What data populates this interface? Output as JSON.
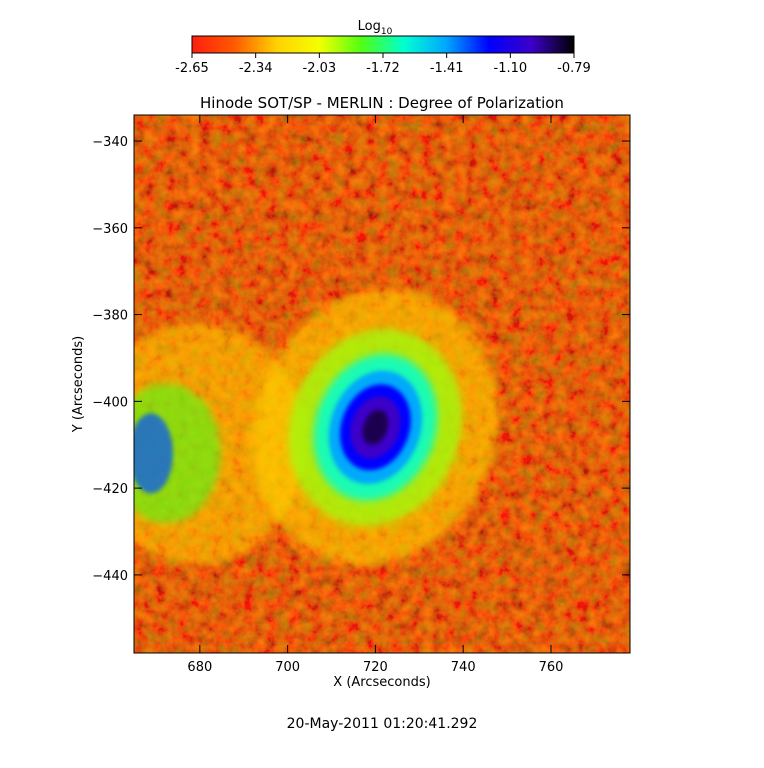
{
  "chart_data": {
    "type": "heatmap",
    "title": "Hinode SOT/SP - MERLIN : Degree of Polarization",
    "xlabel": "X (Arcseconds)",
    "ylabel": "Y (Arcseconds)",
    "xlim": [
      665,
      778
    ],
    "ylim": [
      -458,
      -334
    ],
    "x_ticks": [
      680,
      700,
      720,
      740,
      760
    ],
    "y_ticks": [
      -340,
      -360,
      -380,
      -400,
      -420,
      -440
    ],
    "colorbar": {
      "label_main": "Log",
      "label_sub": "10",
      "ticks": [
        "-2.65",
        "-2.34",
        "-2.03",
        "-1.72",
        "-1.41",
        "-1.10",
        "-0.79"
      ],
      "range": [
        -2.65,
        -0.79
      ],
      "colors": [
        "#ff1e0f",
        "#ff5a00",
        "#ffd200",
        "#f5ff00",
        "#50ff14",
        "#00ffd2",
        "#00a5ff",
        "#0000ff",
        "#3c00c8",
        "#000000"
      ]
    },
    "features": [
      {
        "name": "sunspot core",
        "x": 720,
        "y": -406,
        "value": -0.79
      },
      {
        "name": "plage strip",
        "x": 670,
        "y": -412,
        "value": -1.1
      }
    ],
    "background_value": -2.65,
    "grid": false,
    "legend": "colorbar-top"
  },
  "footer": {
    "timestamp": "20-May-2011 01:20:41.292"
  }
}
